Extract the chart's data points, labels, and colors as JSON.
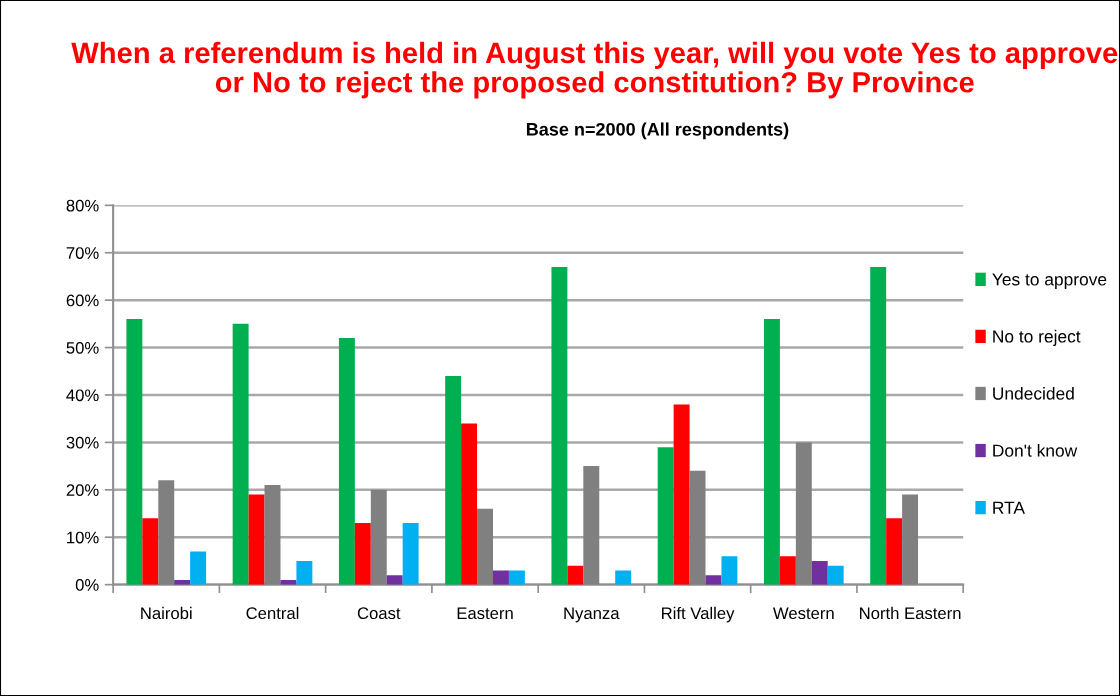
{
  "chart_data": {
    "type": "bar",
    "title": "When a referendum is held in August this year, will you vote Yes to approve or No to reject the proposed constitution? By Province",
    "subtitle": "Base n=2000 (All respondents)",
    "categories": [
      "Nairobi",
      "Central",
      "Coast",
      "Eastern",
      "Nyanza",
      "Rift Valley",
      "Western",
      "North Eastern"
    ],
    "series": [
      {
        "name": "Yes to approve",
        "color": "#00b050",
        "values": [
          56,
          55,
          52,
          44,
          67,
          29,
          56,
          67
        ]
      },
      {
        "name": "No to reject",
        "color": "#ff0000",
        "values": [
          14,
          19,
          13,
          34,
          4,
          38,
          6,
          14
        ]
      },
      {
        "name": "Undecided",
        "color": "#808080",
        "values": [
          22,
          21,
          20,
          16,
          25,
          24,
          30,
          19
        ]
      },
      {
        "name": "Don't know",
        "color": "#7030a0",
        "values": [
          1,
          1,
          2,
          3,
          0,
          2,
          5,
          0
        ]
      },
      {
        "name": "RTA",
        "color": "#00b0f0",
        "values": [
          7,
          5,
          13,
          3,
          3,
          6,
          4,
          0
        ]
      }
    ],
    "ylim": [
      0,
      80
    ],
    "yticks": [
      {
        "value": 0,
        "label": "0%"
      },
      {
        "value": 10,
        "label": "10%"
      },
      {
        "value": 20,
        "label": "20%"
      },
      {
        "value": 30,
        "label": "30%"
      },
      {
        "value": 40,
        "label": "40%"
      },
      {
        "value": 50,
        "label": "50%"
      },
      {
        "value": 60,
        "label": "60%"
      },
      {
        "value": 70,
        "label": "70%"
      },
      {
        "value": 80,
        "label": "80%"
      }
    ],
    "grid": "y",
    "legend": "right"
  }
}
